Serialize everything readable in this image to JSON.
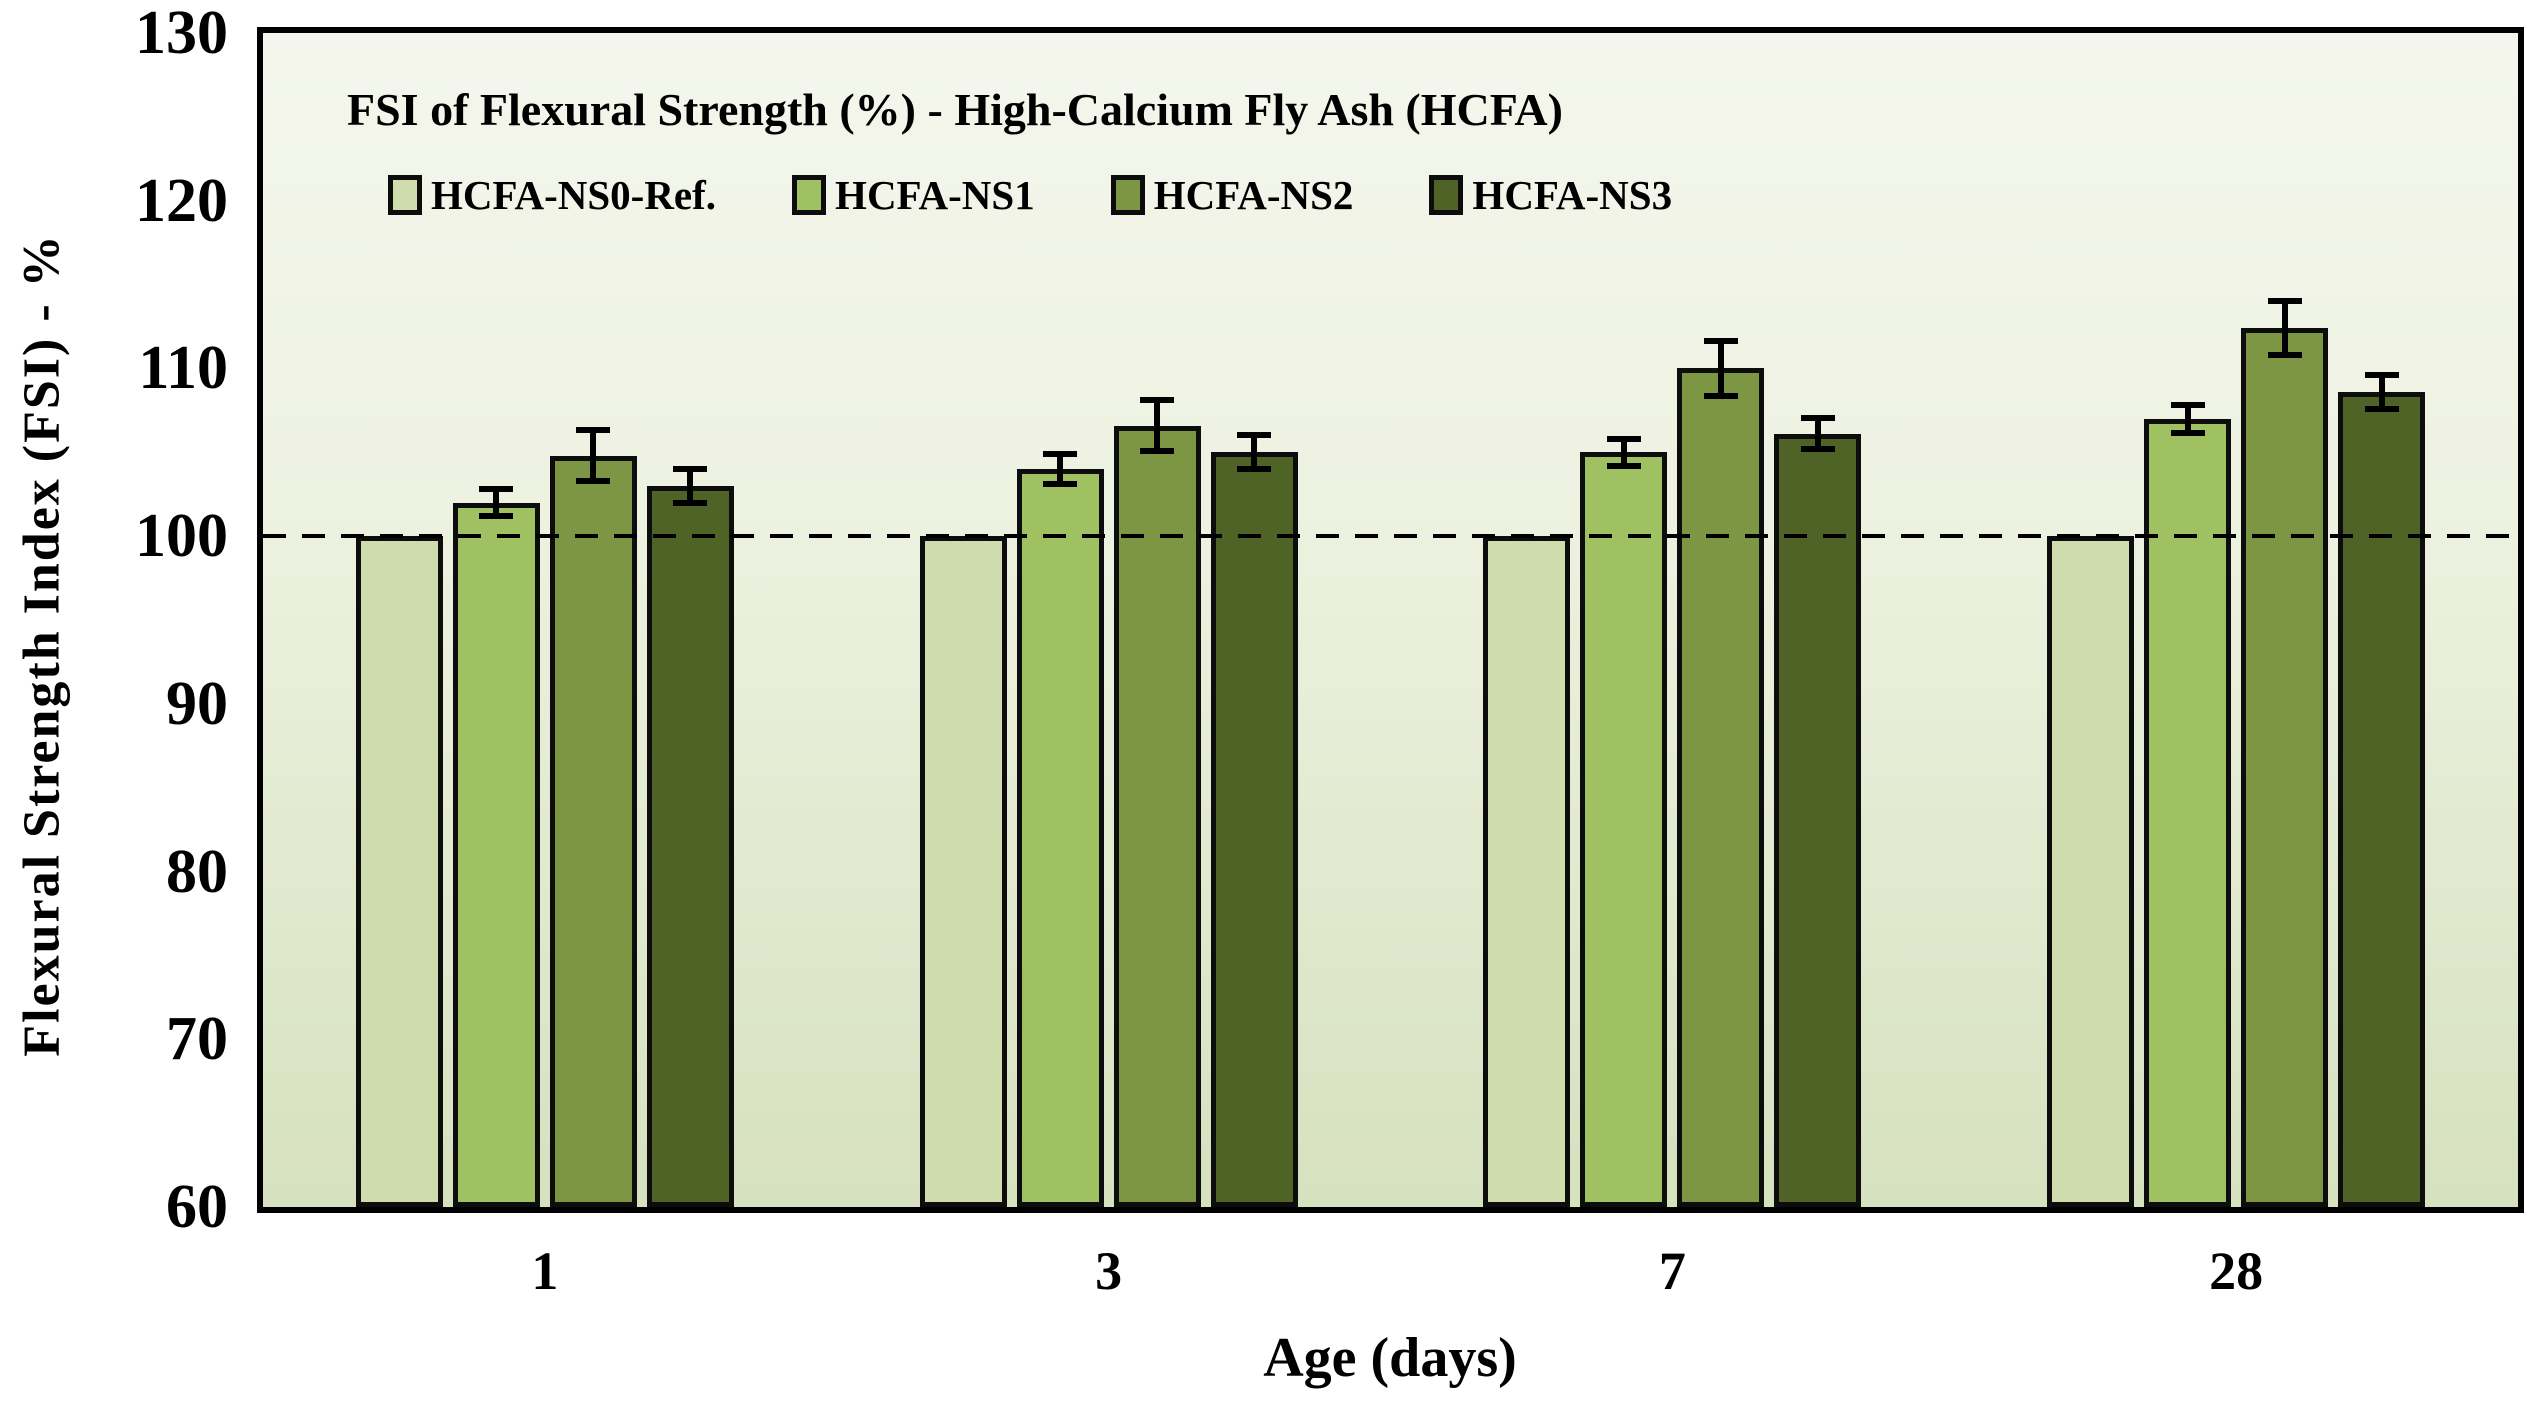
{
  "chart_data": {
    "type": "bar",
    "title": "FSI of Flexural Strength (%) - High-Calcium Fly Ash (HCFA)",
    "xlabel": "Age (days)",
    "ylabel": "Flexural Strength Index (FSI) - %",
    "categories": [
      "1",
      "3",
      "7",
      "28"
    ],
    "ylim": [
      60,
      130
    ],
    "ytick_step": 10,
    "grid": false,
    "legend_position": "inside-top-left",
    "baseline": 100,
    "series": [
      {
        "name": "HCFA-NS0-Ref.",
        "color": "#cedcae",
        "values": [
          100,
          100,
          100,
          100
        ],
        "errors": [
          0,
          0,
          0,
          0
        ]
      },
      {
        "name": "HCFA-NS1",
        "color": "#a0c161",
        "values": [
          102,
          104,
          105,
          107
        ],
        "errors": [
          1.0,
          1.1,
          1.0,
          1.0
        ]
      },
      {
        "name": "HCFA-NS2",
        "color": "#7c9644",
        "values": [
          104.8,
          106.6,
          110,
          112.4
        ],
        "errors": [
          1.7,
          1.7,
          1.8,
          1.8
        ]
      },
      {
        "name": "HCFA-NS3",
        "color": "#4f6327",
        "values": [
          103,
          105,
          106.1,
          108.6
        ],
        "errors": [
          1.2,
          1.2,
          1.1,
          1.2
        ]
      }
    ]
  },
  "colors": {
    "plot_bg_top": "#f4f6ed",
    "plot_bg_bottom": "#d6e1bf",
    "axis": "#000000",
    "reference_line": "#000000"
  }
}
